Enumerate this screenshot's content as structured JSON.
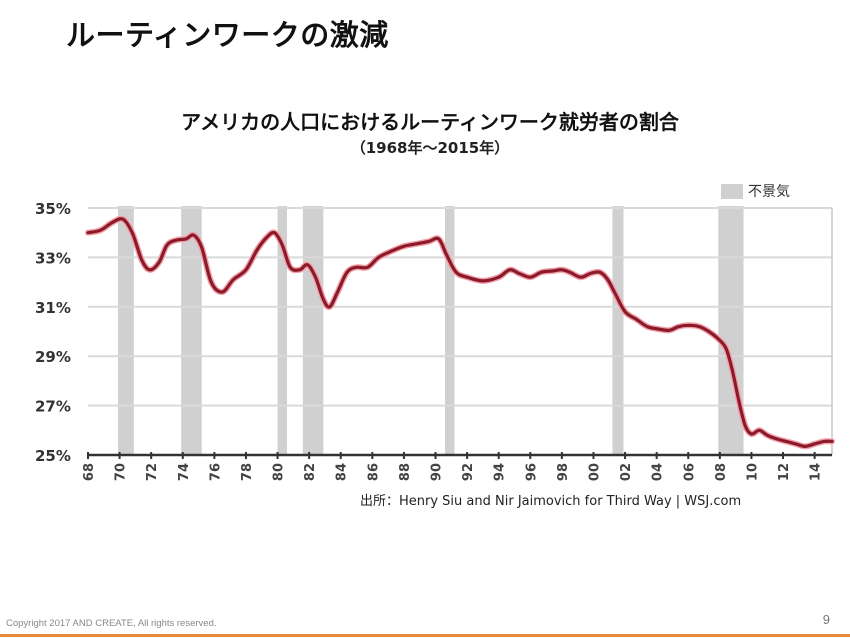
{
  "slide": {
    "title": "ルーティンワークの激減",
    "copyright": "Copyright 2017 AND CREATE, All rights reserved.",
    "page_number": "9",
    "accent_color": "#e58a3c"
  },
  "chart_data": {
    "type": "line",
    "title": "アメリカの人口におけるルーティンワーク就労者の割合",
    "subtitle": "（1968年～2015年）",
    "xlabel": "",
    "ylabel": "",
    "xlim": [
      1968,
      2015.1
    ],
    "ylim": [
      25,
      35
    ],
    "grid": true,
    "line_color": "#8b1a2b",
    "recession_color": "#d0d0d0",
    "y_ticks": [
      {
        "value": 35,
        "label": "35%"
      },
      {
        "value": 33,
        "label": "33%"
      },
      {
        "value": 31,
        "label": "31%"
      },
      {
        "value": 29,
        "label": "29%"
      },
      {
        "value": 27,
        "label": "27%"
      },
      {
        "value": 25,
        "label": "25%"
      }
    ],
    "x_ticks": [
      {
        "value": 1968,
        "label": "68"
      },
      {
        "value": 1970,
        "label": "70"
      },
      {
        "value": 1972,
        "label": "72"
      },
      {
        "value": 1974,
        "label": "74"
      },
      {
        "value": 1976,
        "label": "76"
      },
      {
        "value": 1978,
        "label": "78"
      },
      {
        "value": 1980,
        "label": "80"
      },
      {
        "value": 1982,
        "label": "82"
      },
      {
        "value": 1984,
        "label": "84"
      },
      {
        "value": 1986,
        "label": "86"
      },
      {
        "value": 1988,
        "label": "88"
      },
      {
        "value": 1990,
        "label": "90"
      },
      {
        "value": 1992,
        "label": "92"
      },
      {
        "value": 1994,
        "label": "94"
      },
      {
        "value": 1996,
        "label": "96"
      },
      {
        "value": 1998,
        "label": "98"
      },
      {
        "value": 2000,
        "label": "00"
      },
      {
        "value": 2002,
        "label": "02"
      },
      {
        "value": 2004,
        "label": "04"
      },
      {
        "value": 2006,
        "label": "06"
      },
      {
        "value": 2008,
        "label": "08"
      },
      {
        "value": 2010,
        "label": "10"
      },
      {
        "value": 2012,
        "label": "12"
      },
      {
        "value": 2014,
        "label": "14"
      }
    ],
    "legend": {
      "label": "不景気",
      "placement": "top-right"
    },
    "recessions": [
      {
        "start": 1969.9,
        "end": 1970.9
      },
      {
        "start": 1973.9,
        "end": 1975.2
      },
      {
        "start": 1980.0,
        "end": 1980.6
      },
      {
        "start": 1981.6,
        "end": 1982.9
      },
      {
        "start": 1990.6,
        "end": 1991.2
      },
      {
        "start": 2001.2,
        "end": 2001.9
      },
      {
        "start": 2007.9,
        "end": 2009.5
      }
    ],
    "series": [
      {
        "name": "ルーティンワーク就労者の割合",
        "x": [
          1968,
          1968.8,
          1969.5,
          1970.2,
          1970.8,
          1971.4,
          1971.9,
          1972.5,
          1973.0,
          1973.6,
          1974.2,
          1974.7,
          1975.2,
          1975.8,
          1976.5,
          1977.2,
          1978.0,
          1978.7,
          1979.3,
          1979.8,
          1980.3,
          1980.8,
          1981.4,
          1981.9,
          1982.4,
          1982.9,
          1983.3,
          1983.8,
          1984.4,
          1985.0,
          1985.7,
          1986.4,
          1987.2,
          1988.0,
          1988.8,
          1989.6,
          1990.2,
          1990.7,
          1991.3,
          1992.0,
          1993.0,
          1994.0,
          1994.7,
          1995.3,
          1996.0,
          1996.7,
          1997.4,
          1998.0,
          1998.5,
          1999.2,
          1999.8,
          2000.4,
          2000.9,
          2001.4,
          2002.0,
          2002.7,
          2003.4,
          2004.1,
          2004.8,
          2005.4,
          2006.0,
          2006.7,
          2007.3,
          2007.9,
          2008.4,
          2008.8,
          2009.2,
          2009.6,
          2010.0,
          2010.5,
          2011.0,
          2011.6,
          2012.2,
          2012.8,
          2013.4,
          2014.0,
          2014.6,
          2015.1
        ],
        "values": [
          34.0,
          34.1,
          34.4,
          34.55,
          34.0,
          32.9,
          32.5,
          32.8,
          33.5,
          33.7,
          33.75,
          33.9,
          33.4,
          32.0,
          31.6,
          32.1,
          32.5,
          33.3,
          33.8,
          34.0,
          33.5,
          32.6,
          32.5,
          32.7,
          32.2,
          31.3,
          31.0,
          31.6,
          32.4,
          32.6,
          32.6,
          33.0,
          33.25,
          33.45,
          33.55,
          33.65,
          33.75,
          33.1,
          32.4,
          32.2,
          32.05,
          32.2,
          32.5,
          32.35,
          32.2,
          32.4,
          32.45,
          32.5,
          32.4,
          32.2,
          32.35,
          32.4,
          32.1,
          31.5,
          30.8,
          30.5,
          30.2,
          30.1,
          30.05,
          30.2,
          30.25,
          30.2,
          30.0,
          29.7,
          29.3,
          28.4,
          27.2,
          26.2,
          25.85,
          26.0,
          25.8,
          25.65,
          25.55,
          25.45,
          25.35,
          25.45,
          25.55,
          25.55
        ]
      }
    ],
    "source": "出所：Henry Siu and Nir Jaimovich for Third Way | WSJ.com"
  }
}
